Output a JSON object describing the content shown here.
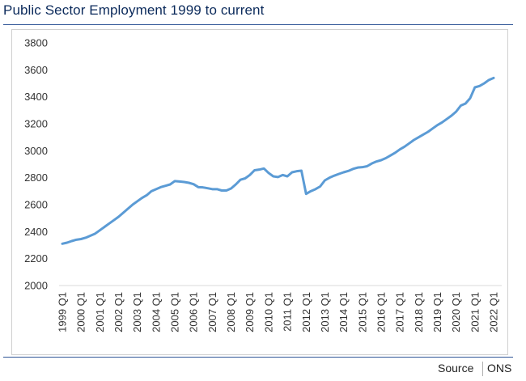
{
  "chart_data": {
    "type": "line",
    "title": "Public Sector Employment 1999 to current",
    "xlabel": "",
    "ylabel": "",
    "ylim": [
      2000,
      3800
    ],
    "yticks": [
      2000,
      2200,
      2400,
      2600,
      2800,
      3000,
      3200,
      3400,
      3600,
      3800
    ],
    "grid": false,
    "legend": "none",
    "line_color": "#5b9bd5",
    "x_tick_labels": [
      "1999 Q1",
      "2000 Q1",
      "2001 Q1",
      "2002 Q1",
      "2003 Q1",
      "2004 Q1",
      "2005 Q1",
      "2006 Q1",
      "2007 Q1",
      "2008 Q1",
      "2009 Q1",
      "2010 Q1",
      "2011 Q1",
      "2012 Q1",
      "2013 Q1",
      "2014 Q1",
      "2015 Q1",
      "2016 Q1",
      "2017 Q1",
      "2018 Q1",
      "2019 Q1",
      "2020 Q1",
      "2021 Q1",
      "2022 Q1"
    ],
    "series": [
      {
        "values": [
          2310,
          2318,
          2330,
          2340,
          2345,
          2355,
          2370,
          2385,
          2410,
          2435,
          2460,
          2485,
          2510,
          2540,
          2570,
          2600,
          2625,
          2650,
          2670,
          2700,
          2715,
          2730,
          2740,
          2750,
          2775,
          2772,
          2768,
          2762,
          2752,
          2730,
          2728,
          2722,
          2715,
          2715,
          2705,
          2705,
          2720,
          2750,
          2785,
          2795,
          2820,
          2855,
          2860,
          2868,
          2835,
          2810,
          2805,
          2820,
          2810,
          2840,
          2848,
          2852,
          2680,
          2700,
          2715,
          2735,
          2780,
          2800,
          2815,
          2828,
          2840,
          2850,
          2865,
          2875,
          2878,
          2885,
          2905,
          2920,
          2930,
          2945,
          2965,
          2985,
          3010,
          3030,
          3055,
          3080,
          3100,
          3120,
          3140,
          3165,
          3190,
          3210,
          3235,
          3260,
          3290,
          3335,
          3350,
          3390,
          3470,
          3480,
          3500,
          3525,
          3540
        ]
      }
    ]
  },
  "source": {
    "label": "Source",
    "value": "ONS"
  }
}
